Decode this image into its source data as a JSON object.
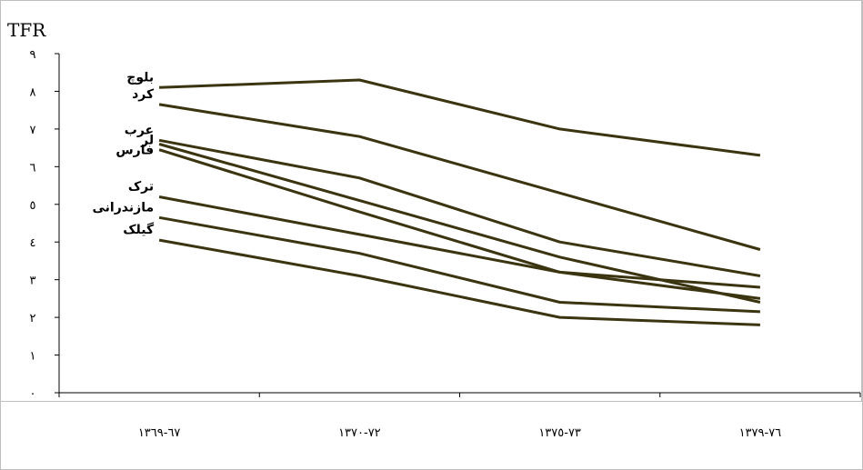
{
  "chart_data": {
    "type": "line",
    "ylabel": "TFR",
    "ylim": [
      0,
      9
    ],
    "yticks": [
      "۰",
      "۱",
      "۲",
      "۳",
      "٤",
      "٥",
      "٦",
      "٧",
      "٨",
      "٩"
    ],
    "categories": [
      "۱۳٦٧-٦٩",
      "۱۳٧۰-٧٢",
      "۱۳٧٣-٧٥",
      "۱۳٧٦-٧٩"
    ],
    "line_color": "#3b3410",
    "series": [
      {
        "name": "بلوچ",
        "values": [
          8.1,
          8.3,
          7.0,
          6.3
        ]
      },
      {
        "name": "کرد",
        "values": [
          7.65,
          6.8,
          5.3,
          3.8
        ]
      },
      {
        "name": "عرب",
        "values": [
          6.7,
          5.7,
          4.0,
          3.1
        ]
      },
      {
        "name": "لر",
        "values": [
          6.6,
          5.1,
          3.6,
          2.4
        ]
      },
      {
        "name": "فارس",
        "values": [
          6.45,
          4.8,
          3.2,
          2.5
        ]
      },
      {
        "name": "ترک",
        "values": [
          5.2,
          4.2,
          3.2,
          2.8
        ]
      },
      {
        "name": "مازندرانی",
        "values": [
          4.65,
          3.7,
          2.4,
          2.15
        ]
      },
      {
        "name": "گیلک",
        "values": [
          4.05,
          3.1,
          2.0,
          1.8
        ]
      }
    ]
  }
}
